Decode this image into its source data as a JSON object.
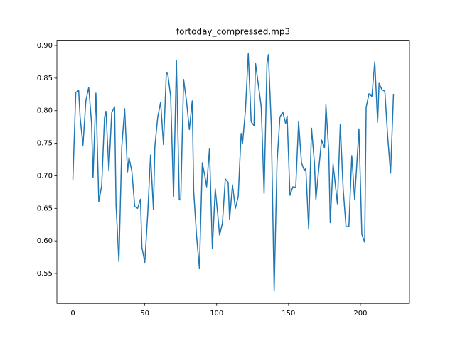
{
  "chart_data": {
    "type": "line",
    "title": "fortoday_compressed.mp3",
    "x": [
      0,
      2,
      4,
      5,
      7,
      9,
      11,
      13,
      14,
      16,
      18,
      20,
      22,
      23,
      25,
      27,
      29,
      30,
      32,
      34,
      36,
      38,
      39,
      41,
      43,
      45,
      47,
      48,
      50,
      52,
      54,
      56,
      57,
      59,
      61,
      63,
      65,
      66,
      68,
      70,
      72,
      74,
      75,
      77,
      79,
      81,
      83,
      84,
      86,
      88,
      90,
      92,
      93,
      95,
      97,
      99,
      101,
      102,
      104,
      106,
      108,
      109,
      111,
      113,
      115,
      117,
      118,
      120,
      122,
      124,
      126,
      127,
      129,
      131,
      133,
      135,
      136,
      138,
      140,
      142,
      144,
      146,
      148,
      149,
      151,
      153,
      155,
      157,
      159,
      161,
      162,
      164,
      166,
      168,
      169,
      171,
      173,
      175,
      176,
      178,
      179,
      181,
      184,
      186,
      188,
      190,
      192,
      194,
      196,
      199,
      201,
      203,
      204,
      206,
      208,
      210,
      212,
      213,
      215,
      217,
      219,
      221,
      223
    ],
    "series": [
      {
        "color": "#1f77b4",
        "values": [
          0.695,
          0.828,
          0.831,
          0.79,
          0.747,
          0.815,
          0.836,
          0.78,
          0.697,
          0.827,
          0.66,
          0.685,
          0.79,
          0.799,
          0.708,
          0.797,
          0.806,
          0.655,
          0.568,
          0.745,
          0.803,
          0.706,
          0.728,
          0.707,
          0.653,
          0.65,
          0.664,
          0.59,
          0.567,
          0.64,
          0.732,
          0.648,
          0.745,
          0.79,
          0.813,
          0.748,
          0.859,
          0.856,
          0.822,
          0.668,
          0.877,
          0.663,
          0.663,
          0.848,
          0.815,
          0.771,
          0.815,
          0.677,
          0.608,
          0.558,
          0.72,
          0.697,
          0.683,
          0.742,
          0.588,
          0.68,
          0.635,
          0.609,
          0.627,
          0.695,
          0.69,
          0.633,
          0.686,
          0.65,
          0.668,
          0.765,
          0.75,
          0.8,
          0.888,
          0.783,
          0.777,
          0.873,
          0.84,
          0.806,
          0.673,
          0.872,
          0.886,
          0.778,
          0.523,
          0.72,
          0.79,
          0.798,
          0.78,
          0.792,
          0.67,
          0.683,
          0.682,
          0.783,
          0.72,
          0.708,
          0.712,
          0.618,
          0.773,
          0.72,
          0.663,
          0.71,
          0.755,
          0.743,
          0.809,
          0.737,
          0.628,
          0.718,
          0.657,
          0.779,
          0.68,
          0.622,
          0.622,
          0.731,
          0.664,
          0.772,
          0.61,
          0.598,
          0.805,
          0.826,
          0.822,
          0.875,
          0.782,
          0.842,
          0.832,
          0.83,
          0.76,
          0.704,
          0.824
        ]
      }
    ],
    "xlim": [
      -11.15,
      234.15
    ],
    "xticks": [
      0,
      50,
      100,
      150,
      200
    ],
    "ylim": [
      0.504,
      0.907
    ],
    "yticks": [
      0.55,
      {
        "value": 0.6,
        "label": "0.60"
      },
      0.65,
      {
        "value": 0.7,
        "label": "0.70"
      },
      0.75,
      {
        "value": 0.8,
        "label": "0.80"
      },
      0.85,
      {
        "value": 0.9,
        "label": "0.90"
      }
    ]
  }
}
